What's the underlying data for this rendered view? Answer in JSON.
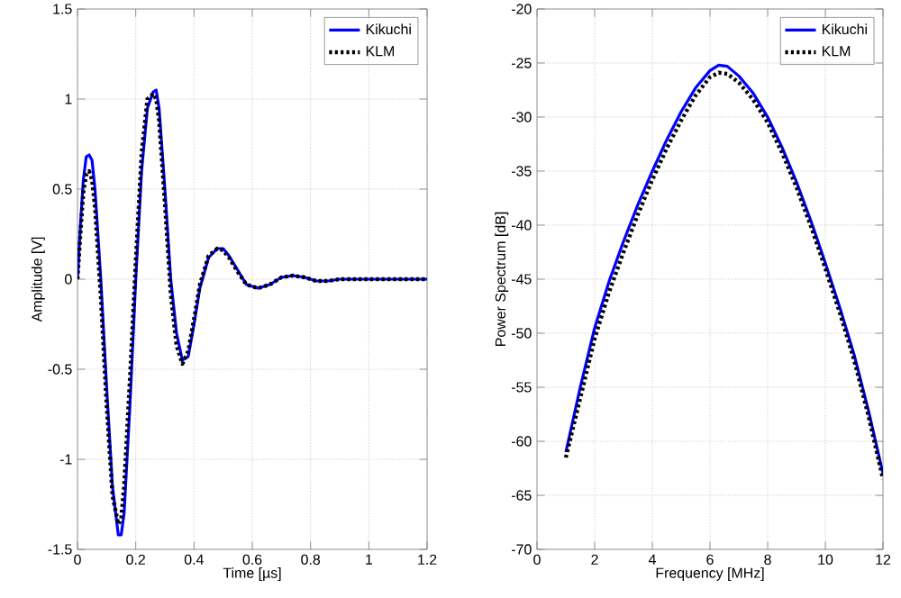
{
  "chart_data": [
    {
      "type": "line",
      "xlabel": "Time [µs]",
      "ylabel": "Amplitude [V]",
      "xlim": [
        0,
        1.2
      ],
      "ylim": [
        -1.5,
        1.5
      ],
      "xticks": [
        0,
        0.2,
        0.4,
        0.6,
        0.8,
        1,
        1.2
      ],
      "yticks": [
        -1.5,
        -1,
        -0.5,
        0,
        0.5,
        1,
        1.5
      ],
      "grid": true,
      "legend": "top right",
      "series": [
        {
          "name": "Kikuchi",
          "color": "#0000ff",
          "line_style": "solid",
          "x": [
            0,
            0.01,
            0.02,
            0.03,
            0.04,
            0.05,
            0.06,
            0.08,
            0.1,
            0.12,
            0.14,
            0.15,
            0.16,
            0.18,
            0.2,
            0.22,
            0.24,
            0.26,
            0.27,
            0.28,
            0.3,
            0.32,
            0.34,
            0.36,
            0.38,
            0.4,
            0.42,
            0.45,
            0.48,
            0.5,
            0.52,
            0.55,
            0.58,
            0.62,
            0.66,
            0.7,
            0.74,
            0.78,
            0.82,
            0.86,
            0.9,
            1,
            1.1,
            1.2
          ],
          "values": [
            0,
            0.3,
            0.55,
            0.68,
            0.69,
            0.66,
            0.5,
            0,
            -0.6,
            -1.15,
            -1.42,
            -1.42,
            -1.3,
            -0.7,
            0,
            0.6,
            0.95,
            1.04,
            1.05,
            0.95,
            0.5,
            0,
            -0.3,
            -0.45,
            -0.43,
            -0.25,
            -0.05,
            0.12,
            0.17,
            0.17,
            0.13,
            0.05,
            -0.03,
            -0.05,
            -0.03,
            0.01,
            0.02,
            0.01,
            -0.01,
            -0.01,
            0,
            0,
            0,
            0
          ]
        },
        {
          "name": "KLM",
          "color": "#000000",
          "line_style": "dotted",
          "x": [
            0,
            0.01,
            0.02,
            0.03,
            0.04,
            0.05,
            0.06,
            0.08,
            0.1,
            0.12,
            0.14,
            0.15,
            0.16,
            0.18,
            0.2,
            0.22,
            0.24,
            0.26,
            0.27,
            0.28,
            0.3,
            0.32,
            0.34,
            0.36,
            0.38,
            0.4,
            0.42,
            0.45,
            0.48,
            0.5,
            0.52,
            0.55,
            0.58,
            0.62,
            0.66,
            0.7,
            0.74,
            0.78,
            0.82,
            0.86,
            0.9,
            1,
            1.1,
            1.2
          ],
          "values": [
            0,
            0.25,
            0.48,
            0.58,
            0.6,
            0.55,
            0.4,
            -0.1,
            -0.7,
            -1.2,
            -1.36,
            -1.33,
            -1.15,
            -0.55,
            0.1,
            0.7,
            1,
            1.03,
            1,
            0.88,
            0.42,
            -0.08,
            -0.37,
            -0.47,
            -0.4,
            -0.22,
            -0.03,
            0.13,
            0.17,
            0.16,
            0.12,
            0.04,
            -0.03,
            -0.05,
            -0.03,
            0.01,
            0.02,
            0.01,
            -0.01,
            -0.01,
            0,
            0,
            0,
            0
          ]
        }
      ]
    },
    {
      "type": "line",
      "xlabel": "Frequency [MHz]",
      "ylabel": "Power Spectrum [dB]",
      "xlim": [
        0,
        12
      ],
      "ylim": [
        -70,
        -20
      ],
      "xticks": [
        0,
        2,
        4,
        6,
        8,
        10,
        12
      ],
      "yticks": [
        -70,
        -65,
        -60,
        -55,
        -50,
        -45,
        -40,
        -35,
        -30,
        -25,
        -20
      ],
      "grid": true,
      "legend": "top right",
      "series": [
        {
          "name": "Kikuchi",
          "color": "#0000ff",
          "line_style": "solid",
          "x": [
            1,
            1.5,
            2,
            2.5,
            3,
            3.5,
            4,
            4.5,
            5,
            5.5,
            6,
            6.3,
            6.6,
            7,
            7.5,
            8,
            8.5,
            9,
            9.5,
            10,
            10.5,
            11,
            11.5,
            12
          ],
          "values": [
            -61,
            -55,
            -49.5,
            -45.2,
            -41.5,
            -38.1,
            -35,
            -32.1,
            -29.5,
            -27.3,
            -25.7,
            -25.2,
            -25.3,
            -26.2,
            -27.8,
            -30,
            -32.8,
            -36,
            -39.6,
            -43.5,
            -47.6,
            -52,
            -57.2,
            -63
          ]
        },
        {
          "name": "KLM",
          "color": "#000000",
          "line_style": "dotted",
          "x": [
            1,
            1.5,
            2,
            2.5,
            3,
            3.5,
            4,
            4.5,
            5,
            5.5,
            6,
            6.3,
            6.6,
            7,
            7.5,
            8,
            8.5,
            9,
            9.5,
            10,
            10.5,
            11,
            11.5,
            12
          ],
          "values": [
            -61.5,
            -56,
            -50.5,
            -46.2,
            -42.5,
            -39,
            -35.8,
            -32.9,
            -30.3,
            -28,
            -26.3,
            -25.9,
            -26,
            -26.8,
            -28.4,
            -30.5,
            -33.3,
            -36.5,
            -40.1,
            -44,
            -48.1,
            -52.5,
            -57.7,
            -63.5
          ]
        }
      ]
    }
  ]
}
